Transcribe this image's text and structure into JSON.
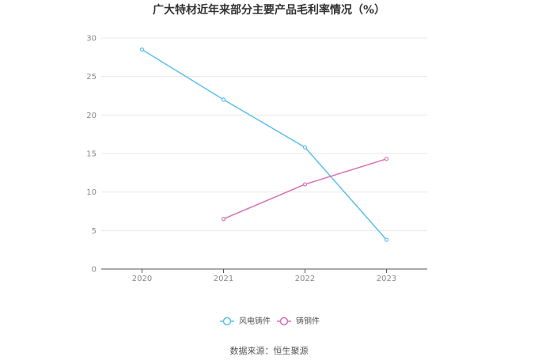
{
  "chart_data": {
    "type": "line",
    "title": "广大特材近年来部分主要产品毛利率情况（%）",
    "categories": [
      "2020",
      "2021",
      "2022",
      "2023"
    ],
    "series": [
      {
        "name": "风电铸件",
        "color": "#5bc0eb",
        "values": [
          28.5,
          22.0,
          15.8,
          3.8
        ]
      },
      {
        "name": "铸钢件",
        "color": "#d96eb3",
        "values": [
          null,
          6.5,
          11.0,
          14.3
        ]
      }
    ],
    "ylim": [
      0,
      30
    ],
    "yticks": [
      "0",
      "5",
      "10",
      "15",
      "20",
      "25",
      "30"
    ],
    "xlabel": "",
    "ylabel": "",
    "grid": true,
    "legend_position": "bottom"
  },
  "source": "数据来源：恒生聚源"
}
